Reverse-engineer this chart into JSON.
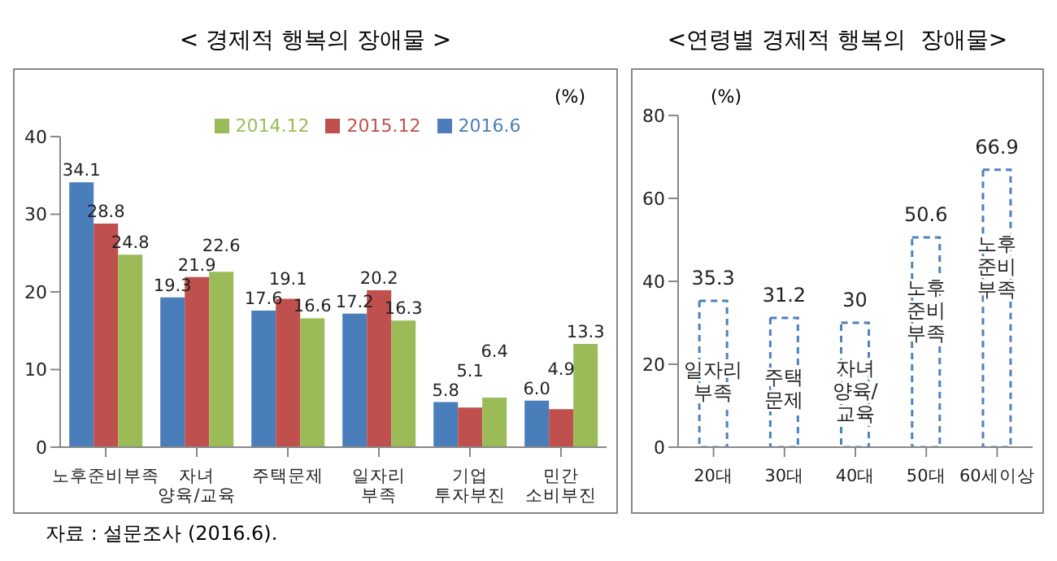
{
  "chart_data": [
    {
      "type": "bar",
      "title": "< 경제적 행복의 장애물 >",
      "ylabel": "(%)",
      "categories": [
        "노후준비부족",
        "자녀 양육/교육",
        "주택문제",
        "일자리 부족",
        "기업 투자부진",
        "민간 소비부진"
      ],
      "series": [
        {
          "name": "2016.6",
          "color": "#4a7ebb",
          "values": [
            34.1,
            19.3,
            17.6,
            17.2,
            5.8,
            6.0
          ],
          "value_labels": [
            "34.1",
            "19.3",
            "17.6",
            "17.2",
            "5.8",
            "6.0"
          ]
        },
        {
          "name": "2015.12",
          "color": "#c0504d",
          "values": [
            28.8,
            21.9,
            19.1,
            20.2,
            5.1,
            4.9
          ],
          "value_labels": [
            "28.8",
            "21.9",
            "19.1",
            "20.2",
            "5.1",
            "4.9"
          ]
        },
        {
          "name": "2014.12",
          "color": "#9bbb59",
          "values": [
            24.8,
            22.6,
            16.6,
            16.3,
            6.4,
            13.3
          ],
          "value_labels": [
            "24.8",
            "22.6",
            "16.6",
            "16.3",
            "6.4",
            "13.3"
          ]
        }
      ],
      "ylim": [
        0,
        40
      ],
      "yticks": [
        0,
        10,
        20,
        30,
        40
      ],
      "legend": "top",
      "grid": false,
      "annotations": [
        "자료 : 설문조사 (2016.6)."
      ]
    },
    {
      "type": "bar",
      "title": "<연령별 경제적 행복의  장애물>",
      "ylabel": "(%)",
      "categories": [
        "20대",
        "30대",
        "40대",
        "50대",
        "60세이상"
      ],
      "values": [
        35.3,
        31.2,
        30,
        50.6,
        66.9
      ],
      "color": "#4f81bd",
      "line_style": "dashed",
      "data_labels": true,
      "ylim": [
        0,
        80
      ],
      "yticks": [
        0,
        20,
        40,
        60,
        80
      ],
      "legend": false,
      "grid": false,
      "annotations": [
        "일자리\n부족",
        "주택\n문제",
        "자녀\n양육/\n교육",
        "노후\n준비\n부족",
        "노후\n준비\n부족"
      ]
    }
  ]
}
